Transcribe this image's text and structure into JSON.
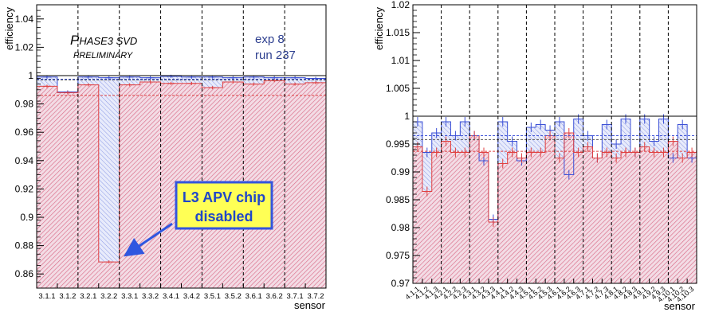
{
  "chart_data": [
    {
      "type": "bar",
      "ylabel": "efficiency",
      "xlabel": "sensor",
      "ylim": [
        0.85,
        1.05
      ],
      "yticks": [
        "0.86",
        "0.88",
        "0.9",
        "0.92",
        "0.94",
        "0.96",
        "0.98",
        "1",
        "1.02",
        "1.04"
      ],
      "ytick_values": [
        0.86,
        0.88,
        0.9,
        0.92,
        0.94,
        0.96,
        0.98,
        1.0,
        1.02,
        1.04
      ],
      "categories": [
        "3.1.1",
        "3.1.2",
        "3.2.1",
        "3.2.2",
        "3.3.1",
        "3.3.2",
        "3.4.1",
        "3.4.2",
        "3.5.1",
        "3.5.2",
        "3.6.1",
        "3.6.2",
        "3.7.1",
        "3.7.2"
      ],
      "series": [
        {
          "color": "#3a4fd6",
          "values": [
            0.999,
            0.9885,
            0.999,
            0.9985,
            0.999,
            0.9985,
            0.9995,
            0.999,
            0.999,
            0.9985,
            0.999,
            0.9985,
            0.9985,
            0.998
          ]
        },
        {
          "color": "#e04040",
          "values": [
            0.9925,
            0.988,
            0.9935,
            0.8685,
            0.9935,
            0.9955,
            0.9945,
            0.9945,
            0.9915,
            0.9955,
            0.994,
            0.9965,
            0.994,
            0.995
          ]
        }
      ],
      "dashed_lines": [
        {
          "color": "#3a4fd6",
          "value": 0.9975
        },
        {
          "color": "#555555",
          "value": 0.997
        },
        {
          "color": "#e04040",
          "value": 0.986
        }
      ],
      "annotations": {
        "title_small_caps": {
          "first": "P",
          "rest": "HASE3 SVD"
        },
        "subtitle": "PRELIMINARY",
        "exp": "exp 8",
        "run": "run 237",
        "callout_line1": "L3 APV chip",
        "callout_line2": "disabled"
      }
    },
    {
      "type": "bar",
      "ylabel": "efficiency",
      "xlabel": "sensor",
      "ylim": [
        0.97,
        1.02
      ],
      "yticks": [
        "0.97",
        "0.975",
        "0.98",
        "0.985",
        "0.99",
        "0.995",
        "1",
        "1.005",
        "1.01",
        "1.015",
        "1.02"
      ],
      "ytick_values": [
        0.97,
        0.975,
        0.98,
        0.985,
        0.99,
        0.995,
        1.0,
        1.005,
        1.01,
        1.015,
        1.02
      ],
      "categories": [
        "4.1.1",
        "4.1.2",
        "4.1.3",
        "4.2.1",
        "4.2.2",
        "4.2.3",
        "4.3.1",
        "4.3.2",
        "4.3.3",
        "4.4.1",
        "4.4.2",
        "4.4.3",
        "4.5.1",
        "4.5.2",
        "4.5.3",
        "4.6.1",
        "4.6.2",
        "4.6.3",
        "4.7.1",
        "4.7.2",
        "4.7.3",
        "4.8.1",
        "4.8.2",
        "4.8.3",
        "4.9.1",
        "4.9.2",
        "4.9.3",
        "4.10.1",
        "4.10.2",
        "4.10.3"
      ],
      "series": [
        {
          "color": "#3a4fd6",
          "values": [
            0.999,
            0.9935,
            0.997,
            0.999,
            0.9965,
            0.999,
            0.9965,
            0.992,
            0.9815,
            0.999,
            0.9955,
            0.992,
            0.998,
            0.9985,
            0.9975,
            0.999,
            0.9895,
            0.9995,
            0.9965,
            0.9925,
            0.9985,
            0.995,
            0.9995,
            0.9935,
            0.9995,
            0.9955,
            0.9995,
            0.9925,
            0.9985,
            0.9925
          ]
        },
        {
          "color": "#e04040",
          "values": [
            0.9945,
            0.9865,
            0.9935,
            0.9955,
            0.9935,
            0.9935,
            0.9965,
            0.9935,
            0.981,
            0.9915,
            0.9935,
            0.9925,
            0.9935,
            0.9935,
            0.9965,
            0.9925,
            0.997,
            0.9935,
            0.9945,
            0.9925,
            0.9935,
            0.9925,
            0.9935,
            0.9935,
            0.9945,
            0.9935,
            0.9935,
            0.9955,
            0.9925,
            0.9935
          ]
        }
      ],
      "dashed_lines": [
        {
          "color": "#3a4fd6",
          "value": 0.9965
        },
        {
          "color": "#555555",
          "value": 0.9958
        },
        {
          "color": "#e04040",
          "value": 0.9937
        }
      ]
    }
  ]
}
